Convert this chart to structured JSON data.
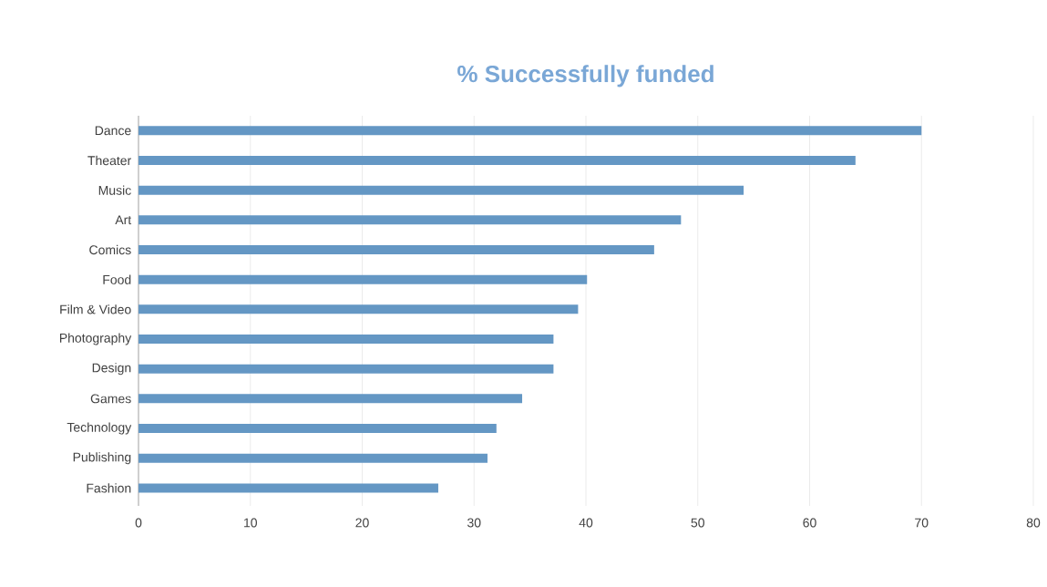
{
  "chart_data": {
    "type": "bar",
    "orientation": "horizontal",
    "title": "% Successfully funded",
    "categories": [
      "Dance",
      "Theater",
      "Music",
      "Art",
      "Comics",
      "Food",
      "Film & Video",
      "Photography",
      "Design",
      "Games",
      "Technology",
      "Publishing",
      "Fashion"
    ],
    "values": [
      70,
      64.1,
      54.1,
      48.5,
      46.1,
      40.1,
      39.3,
      37.1,
      37.1,
      34.3,
      32.0,
      31.2,
      26.8
    ],
    "color": "#6497c4",
    "xlim": [
      0,
      80
    ],
    "xticks": [
      0,
      10,
      20,
      30,
      40,
      50,
      60,
      70,
      80
    ],
    "grid": "x"
  }
}
